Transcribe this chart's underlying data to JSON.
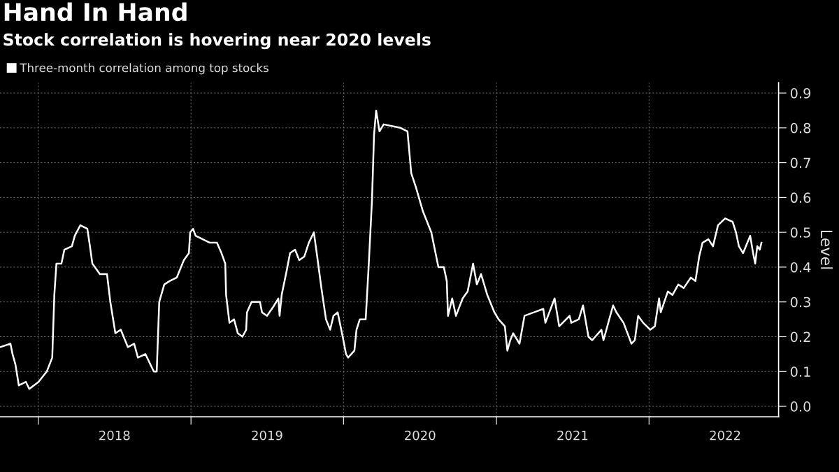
{
  "chart_data": {
    "type": "line",
    "title": "Hand In Hand",
    "subtitle": "Stock correlation is hovering near 2020 levels",
    "ylabel": "Level",
    "x": [
      "2017-10-01",
      "2017-10-26",
      "2017-10-31",
      "2017-11-07",
      "2017-11-15",
      "2017-12-02",
      "2017-12-10",
      "2018-01-01",
      "2018-01-21",
      "2018-02-03",
      "2018-02-08",
      "2018-02-13",
      "2018-02-25",
      "2018-03-04",
      "2018-03-22",
      "2018-03-29",
      "2018-04-11",
      "2018-04-28",
      "2018-05-03",
      "2018-05-10",
      "2018-05-28",
      "2018-06-14",
      "2018-06-22",
      "2018-07-04",
      "2018-07-17",
      "2018-08-03",
      "2018-08-18",
      "2018-08-27",
      "2018-09-14",
      "2018-10-04",
      "2018-10-11",
      "2018-10-17",
      "2018-10-29",
      "2018-11-11",
      "2018-11-28",
      "2018-12-15",
      "2018-12-27",
      "2018-12-30",
      "2019-01-06",
      "2019-01-12",
      "2019-02-15",
      "2019-03-04",
      "2019-03-15",
      "2019-03-24",
      "2019-03-26",
      "2019-04-03",
      "2019-04-14",
      "2019-04-23",
      "2019-05-04",
      "2019-05-13",
      "2019-05-15",
      "2019-05-26",
      "2019-06-15",
      "2019-06-20",
      "2019-07-02",
      "2019-07-19",
      "2019-07-29",
      "2019-08-01",
      "2019-08-06",
      "2019-08-18",
      "2019-08-26",
      "2019-09-07",
      "2019-09-17",
      "2019-09-29",
      "2019-10-10",
      "2019-10-22",
      "2019-10-30",
      "2019-11-09",
      "2019-11-20",
      "2019-11-30",
      "2019-12-08",
      "2019-12-18",
      "2019-12-30",
      "2020-01-07",
      "2020-01-12",
      "2020-01-27",
      "2020-02-01",
      "2020-02-09",
      "2020-02-23",
      "2020-03-01",
      "2020-03-09",
      "2020-03-14",
      "2020-03-19",
      "2020-03-27",
      "2020-04-06",
      "2020-05-16",
      "2020-06-02",
      "2020-06-11",
      "2020-06-22",
      "2020-07-09",
      "2020-07-29",
      "2020-08-15",
      "2020-08-28",
      "2020-09-04",
      "2020-09-07",
      "2020-09-17",
      "2020-09-26",
      "2020-10-12",
      "2020-10-24",
      "2020-11-06",
      "2020-11-15",
      "2020-11-25",
      "2020-12-10",
      "2020-12-27",
      "2021-01-06",
      "2021-01-21",
      "2021-01-27",
      "2021-02-03",
      "2021-02-10",
      "2021-02-25",
      "2021-03-09",
      "2021-04-23",
      "2021-04-28",
      "2021-05-20",
      "2021-05-31",
      "2021-06-25",
      "2021-06-29",
      "2021-07-17",
      "2021-07-27",
      "2021-08-09",
      "2021-08-18",
      "2021-09-09",
      "2021-09-14",
      "2021-10-07",
      "2021-10-15",
      "2021-11-01",
      "2021-11-20",
      "2021-11-28",
      "2021-12-06",
      "2021-12-18",
      "2022-01-04",
      "2022-01-15",
      "2022-01-25",
      "2022-01-29",
      "2022-02-15",
      "2022-02-26",
      "2022-03-12",
      "2022-03-25",
      "2022-04-11",
      "2022-04-22",
      "2022-05-01",
      "2022-05-09",
      "2022-05-23",
      "2022-06-03",
      "2022-06-15",
      "2022-07-02",
      "2022-07-20",
      "2022-07-28",
      "2022-08-04",
      "2022-08-14",
      "2022-08-31",
      "2022-09-07",
      "2022-09-12",
      "2022-09-17",
      "2022-09-23",
      "2022-09-27"
    ],
    "series": [
      {
        "name": "Three-month correlation among top stocks",
        "color": "#ffffff",
        "values": [
          0.17,
          0.18,
          0.15,
          0.12,
          0.06,
          0.07,
          0.05,
          0.07,
          0.1,
          0.14,
          0.32,
          0.41,
          0.41,
          0.45,
          0.46,
          0.49,
          0.52,
          0.51,
          0.47,
          0.41,
          0.38,
          0.38,
          0.3,
          0.21,
          0.22,
          0.17,
          0.18,
          0.14,
          0.15,
          0.1,
          0.1,
          0.3,
          0.35,
          0.36,
          0.37,
          0.42,
          0.44,
          0.5,
          0.51,
          0.49,
          0.47,
          0.47,
          0.44,
          0.41,
          0.32,
          0.24,
          0.25,
          0.21,
          0.2,
          0.22,
          0.27,
          0.3,
          0.3,
          0.27,
          0.26,
          0.29,
          0.31,
          0.26,
          0.32,
          0.39,
          0.44,
          0.45,
          0.42,
          0.43,
          0.47,
          0.5,
          0.43,
          0.34,
          0.25,
          0.22,
          0.26,
          0.27,
          0.2,
          0.15,
          0.14,
          0.16,
          0.22,
          0.25,
          0.25,
          0.4,
          0.59,
          0.78,
          0.85,
          0.79,
          0.81,
          0.8,
          0.79,
          0.67,
          0.63,
          0.56,
          0.5,
          0.4,
          0.4,
          0.36,
          0.26,
          0.31,
          0.26,
          0.31,
          0.33,
          0.41,
          0.35,
          0.38,
          0.32,
          0.27,
          0.25,
          0.23,
          0.16,
          0.19,
          0.21,
          0.18,
          0.26,
          0.28,
          0.24,
          0.31,
          0.23,
          0.26,
          0.24,
          0.25,
          0.29,
          0.2,
          0.19,
          0.22,
          0.19,
          0.29,
          0.27,
          0.24,
          0.18,
          0.19,
          0.26,
          0.24,
          0.22,
          0.23,
          0.31,
          0.27,
          0.33,
          0.32,
          0.35,
          0.34,
          0.37,
          0.36,
          0.43,
          0.47,
          0.48,
          0.46,
          0.52,
          0.54,
          0.53,
          0.5,
          0.46,
          0.44,
          0.49,
          0.44,
          0.41,
          0.46,
          0.45,
          0.47
        ]
      }
    ],
    "xlim": [
      "2017-10-01",
      "2022-11-07"
    ],
    "xticks": [
      {
        "value": "2018-01-01",
        "label": null
      },
      {
        "value": "2018-07-02",
        "label": "2018"
      },
      {
        "value": "2019-01-01",
        "label": null
      },
      {
        "value": "2019-07-02",
        "label": "2019"
      },
      {
        "value": "2020-01-01",
        "label": null
      },
      {
        "value": "2020-07-02",
        "label": "2020"
      },
      {
        "value": "2021-01-01",
        "label": null
      },
      {
        "value": "2021-07-02",
        "label": "2021"
      },
      {
        "value": "2022-01-01",
        "label": null
      },
      {
        "value": "2022-07-02",
        "label": "2022"
      }
    ],
    "ylim": [
      -0.03,
      0.93
    ],
    "yticks": [
      {
        "value": 0,
        "label": "0.0"
      },
      {
        "value": 0.1,
        "label": "0.1"
      },
      {
        "value": 0.2,
        "label": "0.2"
      },
      {
        "value": 0.3,
        "label": "0.3"
      },
      {
        "value": 0.4,
        "label": "0.4"
      },
      {
        "value": 0.5,
        "label": "0.5"
      },
      {
        "value": 0.6,
        "label": "0.6"
      },
      {
        "value": 0.7,
        "label": "0.7"
      },
      {
        "value": 0.8,
        "label": "0.8"
      },
      {
        "value": 0.9,
        "label": "0.9"
      }
    ],
    "grid": true,
    "legend": "top left",
    "marker": "none",
    "line_style": "solid"
  }
}
